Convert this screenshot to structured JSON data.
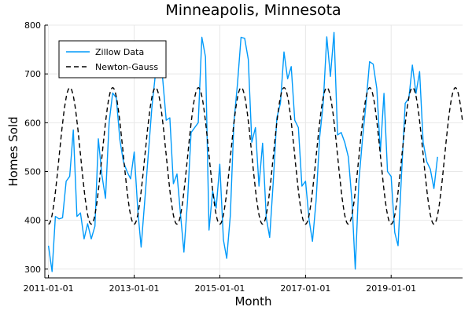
{
  "chart_data": {
    "type": "line",
    "title": "Minneapolis, Minnesota",
    "xlabel": "Month",
    "ylabel": "Homes Sold",
    "x_ticks": [
      "2011-01-01",
      "2013-01-01",
      "2015-01-01",
      "2017-01-01",
      "2019-01-01"
    ],
    "x_range": [
      "2010-12-01",
      "2020-09-01"
    ],
    "y_ticks": [
      300,
      400,
      500,
      600,
      700,
      800
    ],
    "ylim": [
      282,
      800
    ],
    "grid": true,
    "legend_position": "top-left",
    "series": [
      {
        "name": "Zillow Data",
        "style": "solid",
        "color": "#009AFA",
        "start": "2011-01-01",
        "values": [
          348,
          295,
          408,
          403,
          405,
          480,
          490,
          585,
          408,
          415,
          362,
          393,
          362,
          388,
          567,
          492,
          445,
          600,
          661,
          651,
          565,
          520,
          500,
          485,
          540,
          420,
          345,
          440,
          535,
          632,
          700,
          760,
          690,
          605,
          610,
          475,
          495,
          410,
          335,
          440,
          580,
          590,
          600,
          775,
          735,
          380,
          460,
          425,
          515,
          360,
          322,
          410,
          600,
          680,
          775,
          773,
          730,
          560,
          590,
          470,
          558,
          405,
          365,
          480,
          610,
          640,
          745,
          690,
          715,
          605,
          590,
          470,
          480,
          400,
          357,
          440,
          570,
          640,
          776,
          695,
          785,
          575,
          580,
          560,
          530,
          440,
          300,
          480,
          565,
          640,
          725,
          720,
          670,
          540,
          660,
          500,
          490,
          375,
          348,
          500,
          640,
          650,
          718,
          660,
          705,
          560,
          520,
          505,
          465,
          530
        ]
      },
      {
        "name": "Newton-Gauss",
        "style": "dashed",
        "color": "#000000",
        "model": {
          "mean": 532,
          "amplitude": 140,
          "period_months": 12,
          "peak_month": 7
        },
        "start": "2011-01-01",
        "months": 116
      }
    ]
  }
}
